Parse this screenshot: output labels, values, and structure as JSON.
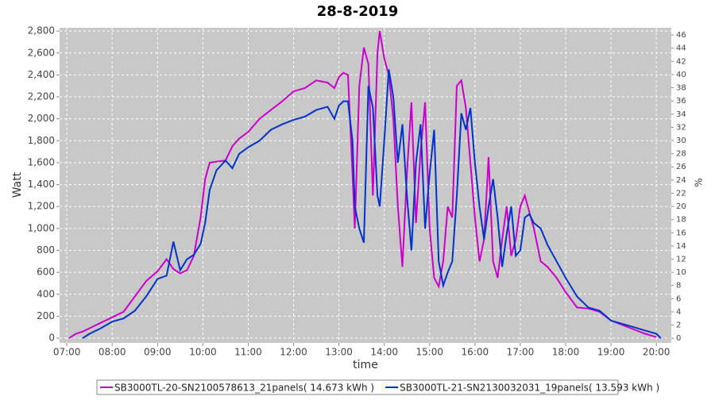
{
  "chart_data": {
    "type": "line",
    "title": "28-8-2019",
    "x_label": "time",
    "y_label": "Watt",
    "y2_label": "%",
    "xlim": [
      6.84,
      20.33
    ],
    "xticks": [
      {
        "value": 7,
        "label": "07:00"
      },
      {
        "value": 8,
        "label": "08:00"
      },
      {
        "value": 9,
        "label": "09:00"
      },
      {
        "value": 10,
        "label": "10:00"
      },
      {
        "value": 11,
        "label": "11:00"
      },
      {
        "value": 12,
        "label": "12:00"
      },
      {
        "value": 13,
        "label": "13:00"
      },
      {
        "value": 14,
        "label": "14:00"
      },
      {
        "value": 15,
        "label": "15:00"
      },
      {
        "value": 16,
        "label": "16:00"
      },
      {
        "value": 17,
        "label": "17:00"
      },
      {
        "value": 18,
        "label": "18:00"
      },
      {
        "value": 19,
        "label": "19:00"
      },
      {
        "value": 20,
        "label": "20:00"
      }
    ],
    "ylim": [
      -43,
      2830
    ],
    "yticks": [
      0,
      200,
      400,
      600,
      800,
      {
        "value": 1000,
        "label": "1,000"
      },
      {
        "value": 1200,
        "label": "1,200"
      },
      {
        "value": 1400,
        "label": "1,400"
      },
      {
        "value": 1600,
        "label": "1,600"
      },
      {
        "value": 1800,
        "label": "1,800"
      },
      {
        "value": 2000,
        "label": "2,000"
      },
      {
        "value": 2200,
        "label": "2,200"
      },
      {
        "value": 2400,
        "label": "2,400"
      },
      {
        "value": 2600,
        "label": "2,600"
      },
      {
        "value": 2800,
        "label": "2,800"
      }
    ],
    "y2lim": [
      -0.7,
      47.1
    ],
    "y2ticks": [
      0,
      2,
      4,
      6,
      8,
      10,
      12,
      14,
      16,
      18,
      20,
      22,
      24,
      26,
      28,
      30,
      32,
      34,
      36,
      38,
      40,
      42,
      44,
      46
    ],
    "grid": true,
    "legend": "bottom",
    "x": [
      7.05,
      7.2,
      7.35,
      7.5,
      7.75,
      8.0,
      8.25,
      8.5,
      8.75,
      9.0,
      9.2,
      9.35,
      9.5,
      9.65,
      9.8,
      9.95,
      10.05,
      10.15,
      10.3,
      10.5,
      10.65,
      10.8,
      11.0,
      11.25,
      11.5,
      11.75,
      12.0,
      12.25,
      12.5,
      12.75,
      12.9,
      13.0,
      13.1,
      13.2,
      13.3,
      13.35,
      13.45,
      13.55,
      13.65,
      13.75,
      13.85,
      13.9,
      14.0,
      14.1,
      14.2,
      14.3,
      14.4,
      14.5,
      14.6,
      14.7,
      14.8,
      14.9,
      15.0,
      15.1,
      15.2,
      15.3,
      15.4,
      15.5,
      15.6,
      15.7,
      15.8,
      15.9,
      16.0,
      16.1,
      16.2,
      16.3,
      16.4,
      16.5,
      16.6,
      16.7,
      16.8,
      16.9,
      17.0,
      17.1,
      17.2,
      17.3,
      17.45,
      17.6,
      17.8,
      18.0,
      18.25,
      18.5,
      18.75,
      19.0,
      19.25,
      19.5,
      19.75,
      20.0,
      20.1
    ],
    "series": [
      {
        "name": "SB3000TL-20-SN2100578613_21panels( 14.673 kWh )",
        "color": "#cc00cc",
        "values": [
          0,
          40,
          60,
          90,
          140,
          190,
          240,
          380,
          520,
          610,
          720,
          630,
          590,
          620,
          750,
          1100,
          1450,
          1600,
          1610,
          1620,
          1750,
          1820,
          1880,
          2000,
          2080,
          2160,
          2250,
          2280,
          2350,
          2330,
          2280,
          2380,
          2420,
          2400,
          1500,
          1000,
          2300,
          2650,
          2500,
          1300,
          2600,
          2800,
          2550,
          2400,
          2000,
          1200,
          650,
          1500,
          2150,
          1050,
          1700,
          2150,
          1000,
          550,
          470,
          700,
          1200,
          1100,
          2300,
          2350,
          2100,
          1600,
          1100,
          700,
          900,
          1650,
          700,
          550,
          900,
          1200,
          750,
          900,
          1200,
          1300,
          1150,
          1000,
          700,
          650,
          550,
          420,
          280,
          270,
          240,
          160,
          120,
          80,
          40,
          10,
          null
        ]
      },
      {
        "name": "SB3000TL-21-SN2130032031_19panels( 13.593 kWh )",
        "color": "#0033cc",
        "values": [
          null,
          null,
          0,
          40,
          90,
          150,
          180,
          250,
          380,
          540,
          570,
          880,
          620,
          720,
          760,
          860,
          1050,
          1350,
          1530,
          1620,
          1550,
          1680,
          1740,
          1800,
          1900,
          1950,
          1990,
          2020,
          2080,
          2110,
          2000,
          2120,
          2160,
          2160,
          1800,
          1200,
          1000,
          870,
          2300,
          2100,
          1300,
          1200,
          1800,
          2450,
          2200,
          1600,
          1950,
          1300,
          800,
          1600,
          1950,
          1000,
          1500,
          1900,
          700,
          480,
          600,
          700,
          1300,
          2050,
          1900,
          2100,
          1600,
          1200,
          900,
          1200,
          1450,
          1100,
          650,
          950,
          1200,
          750,
          800,
          1100,
          1130,
          1050,
          1000,
          850,
          700,
          550,
          380,
          280,
          250,
          160,
          130,
          100,
          70,
          40,
          0
        ]
      }
    ]
  }
}
